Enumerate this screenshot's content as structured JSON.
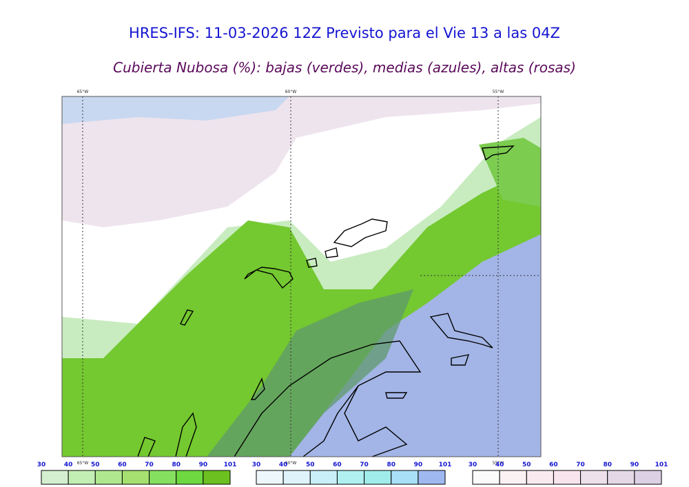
{
  "header": {
    "title": "HRES-IFS: 11-03-2026 12Z Previsto para el Vie 13 a las 04Z",
    "subtitle": "Cubierta Nubosa (%): bajas (verdes), medias (azules), altas (rosas)"
  },
  "map": {
    "lon_labels": [
      "65°W",
      "60°W",
      "55°W"
    ]
  },
  "legends": [
    {
      "ticks": [
        30,
        40,
        50,
        60,
        70,
        80,
        90,
        101
      ],
      "colors": [
        "#d4efd0",
        "#c3efb4",
        "#b0e890",
        "#a5e070",
        "#86e060",
        "#6dd840",
        "#6cc020"
      ]
    },
    {
      "ticks": [
        30,
        40,
        50,
        60,
        70,
        80,
        90,
        101
      ],
      "colors": [
        "#eef8fc",
        "#dff4fa",
        "#c9f0f8",
        "#b0f0f0",
        "#a0ecea",
        "#a8e0f8",
        "#a0b8f0"
      ]
    },
    {
      "ticks": [
        30,
        40,
        50,
        60,
        70,
        80,
        90,
        101
      ],
      "colors": [
        "#fbfbfb",
        "#fbf2f4",
        "#f8eaee",
        "#f8e4ec",
        "#eee0ea",
        "#e4d8e6",
        "#dcd0e4"
      ]
    }
  ]
}
